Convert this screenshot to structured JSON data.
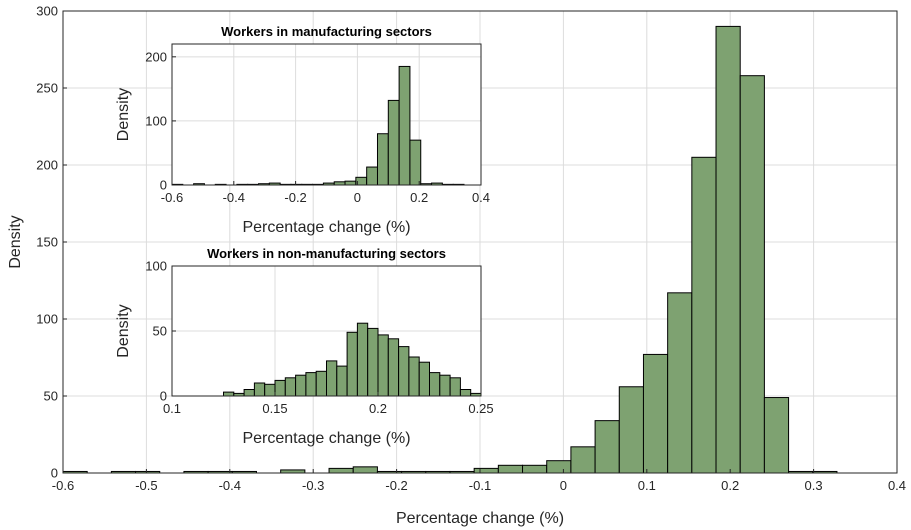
{
  "chart_data": [
    {
      "type": "bar",
      "title": "",
      "xlabel": "Percentage change (%)",
      "ylabel": "Density",
      "xlim": [
        -0.6,
        0.4
      ],
      "ylim": [
        0,
        300
      ],
      "xticks": [
        "-0.6",
        "-0.5",
        "-0.4",
        "-0.3",
        "-0.2",
        "-0.1",
        "0",
        "0.1",
        "0.2",
        "0.3",
        "0.4"
      ],
      "yticks": [
        "0",
        "50",
        "100",
        "150",
        "200",
        "250",
        "300"
      ],
      "bin_edges": [
        -0.6,
        -0.571,
        -0.542,
        -0.513,
        -0.484,
        -0.455,
        -0.426,
        -0.397,
        -0.368,
        -0.339,
        -0.31,
        -0.281,
        -0.252,
        -0.223,
        -0.194,
        -0.165,
        -0.136,
        -0.107,
        -0.078,
        -0.049,
        -0.02,
        0.009,
        0.038,
        0.067,
        0.096,
        0.125,
        0.154,
        0.183,
        0.212,
        0.241,
        0.27,
        0.299,
        0.328
      ],
      "values": [
        1,
        0,
        1,
        1,
        0,
        1,
        1,
        1,
        0,
        2,
        0,
        3,
        4,
        1,
        1,
        1,
        1,
        3,
        5,
        5,
        8,
        17,
        34,
        56,
        77,
        117,
        205,
        290,
        258,
        49,
        1,
        1
      ],
      "grid": true
    },
    {
      "type": "bar",
      "title": "Workers in manufacturing sectors",
      "xlabel": "Percentage change (%)",
      "ylabel": "Density",
      "xlim": [
        -0.6,
        0.4
      ],
      "ylim": [
        0,
        220
      ],
      "xticks": [
        "-0.6",
        "-0.4",
        "-0.2",
        "0",
        "0.2",
        "0.4"
      ],
      "yticks": [
        "0",
        "100",
        "200"
      ],
      "bin_edges": [
        -0.6,
        -0.565,
        -0.53,
        -0.495,
        -0.46,
        -0.425,
        -0.39,
        -0.355,
        -0.32,
        -0.285,
        -0.25,
        -0.215,
        -0.18,
        -0.145,
        -0.11,
        -0.075,
        -0.04,
        -0.005,
        0.03,
        0.065,
        0.1,
        0.135,
        0.17,
        0.205,
        0.24,
        0.275,
        0.31,
        0.345
      ],
      "values": [
        1,
        0,
        2,
        0,
        1,
        0,
        1,
        1,
        2,
        3,
        1,
        1,
        1,
        1,
        3,
        5,
        6,
        12,
        28,
        80,
        132,
        185,
        70,
        2,
        3,
        1,
        1
      ],
      "grid": true
    },
    {
      "type": "bar",
      "title": "Workers in non-manufacturing sectors",
      "xlabel": "Percentage change (%)",
      "ylabel": "Density",
      "xlim": [
        0.1,
        0.25
      ],
      "ylim": [
        0,
        100
      ],
      "xticks": [
        "0.1",
        "0.15",
        "0.2",
        "0.25"
      ],
      "yticks": [
        "0",
        "50",
        "100"
      ],
      "bin_edges": [
        0.1,
        0.105,
        0.11,
        0.115,
        0.12,
        0.125,
        0.13,
        0.135,
        0.14,
        0.145,
        0.15,
        0.155,
        0.16,
        0.165,
        0.17,
        0.175,
        0.18,
        0.185,
        0.19,
        0.195,
        0.2,
        0.205,
        0.21,
        0.215,
        0.22,
        0.225,
        0.23,
        0.235,
        0.24,
        0.245,
        0.25
      ],
      "values": [
        0,
        0,
        0,
        0,
        0,
        3,
        2,
        5,
        10,
        9,
        12,
        14,
        16,
        18,
        19,
        27,
        23,
        49,
        56,
        52,
        47,
        44,
        38,
        30,
        26,
        18,
        16,
        14,
        5,
        2
      ],
      "grid": true
    }
  ]
}
